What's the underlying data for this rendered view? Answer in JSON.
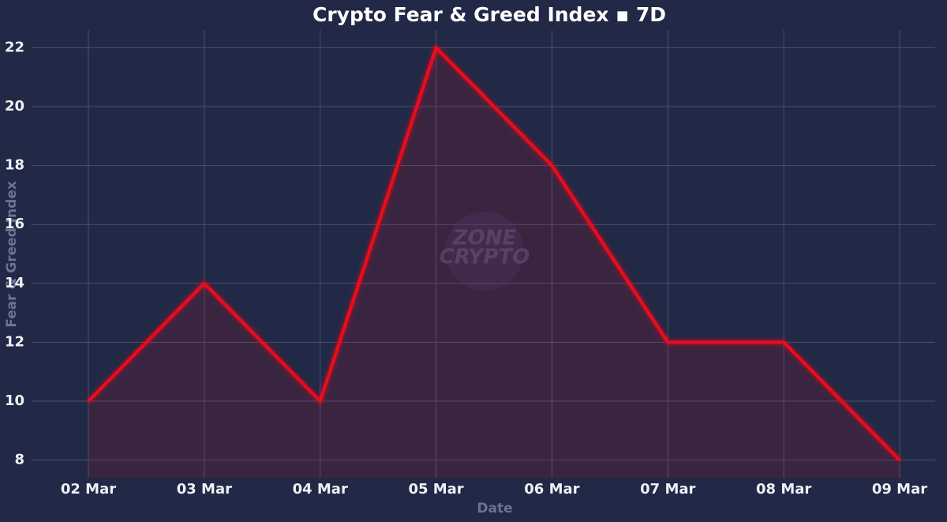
{
  "chart_data": {
    "type": "line",
    "title": "Crypto Fear & Greed Index ▪ 7D",
    "x_label": "Date",
    "y_label": "Fear & Greed Index",
    "watermark": [
      "ZONE",
      "CRYPTO"
    ],
    "categories": [
      "02 Mar",
      "03 Mar",
      "04 Mar",
      "05 Mar",
      "06 Mar",
      "07 Mar",
      "08 Mar",
      "09 Mar"
    ],
    "series": [
      {
        "name": "Fear & Greed Index",
        "color": "#e8101c",
        "values": [
          10,
          14,
          10,
          22,
          18,
          12,
          12,
          8
        ]
      }
    ],
    "ylim": [
      7.4,
      22.6
    ],
    "yticks": [
      8,
      10,
      12,
      14,
      16,
      18,
      20,
      22
    ],
    "grid": true,
    "fill_area": true,
    "legend": false
  }
}
